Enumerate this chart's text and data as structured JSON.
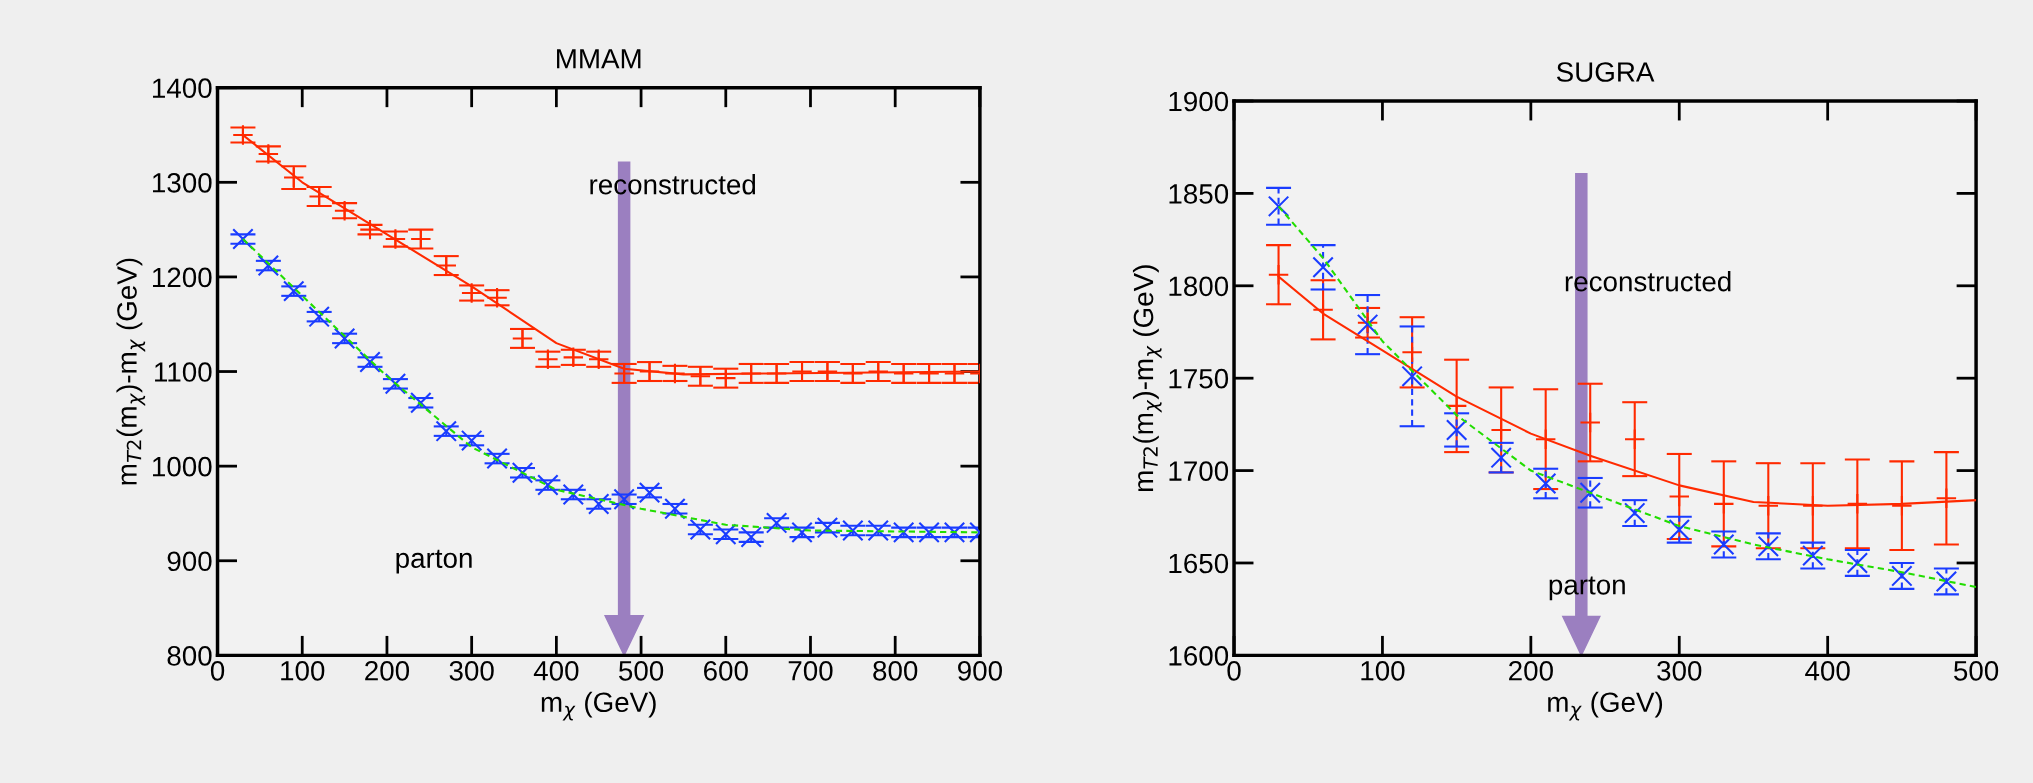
{
  "chart_data": [
    {
      "type": "scatter",
      "title": "MMAM",
      "xlabel": "m$_{χ}$ (GeV)",
      "ylabel": "m$_{T2}$(m$_{χ}$)-m$_{χ}$ (GeV)",
      "xlim": [
        0,
        900
      ],
      "xticks": [
        0,
        100,
        200,
        300,
        400,
        500,
        600,
        700,
        800,
        900
      ],
      "ylim": [
        800,
        1400
      ],
      "yticks": [
        800,
        900,
        1000,
        1100,
        1200,
        1300,
        1400
      ],
      "grid": false,
      "legend": false,
      "x": [
        30,
        60,
        90,
        120,
        150,
        180,
        210,
        240,
        270,
        300,
        330,
        360,
        390,
        420,
        450,
        480,
        510,
        540,
        570,
        600,
        630,
        660,
        690,
        720,
        750,
        780,
        810,
        840,
        870,
        900
      ],
      "series": [
        {
          "color": "#ff2a00",
          "marker": "cross",
          "values": [
            1350,
            1330,
            1305,
            1285,
            1270,
            1250,
            1240,
            1240,
            1212,
            1183,
            1178,
            1135,
            1113,
            1115,
            1113,
            1098,
            1100,
            1098,
            1095,
            1093,
            1098,
            1098,
            1100,
            1100,
            1098,
            1100,
            1098,
            1098,
            1098,
            1098
          ],
          "errors": [
            8,
            8,
            12,
            10,
            8,
            5,
            8,
            10,
            10,
            8,
            8,
            10,
            8,
            8,
            8,
            10,
            10,
            8,
            10,
            10,
            10,
            10,
            10,
            10,
            10,
            10,
            10,
            10,
            10,
            10
          ]
        },
        {
          "color": "#1a3cff",
          "marker": "cross",
          "line_style": "dashed",
          "values": [
            1240,
            1212,
            1185,
            1158,
            1135,
            1110,
            1087,
            1067,
            1037,
            1027,
            1008,
            993,
            980,
            970,
            960,
            965,
            972,
            955,
            933,
            928,
            925,
            940,
            930,
            935,
            932,
            932,
            930,
            930,
            930,
            930
          ],
          "errors": [
            5,
            5,
            5,
            5,
            5,
            5,
            5,
            5,
            5,
            5,
            5,
            5,
            5,
            5,
            5,
            5,
            5,
            5,
            5,
            5,
            5,
            5,
            5,
            5,
            5,
            5,
            5,
            5,
            5,
            5
          ]
        },
        {
          "type": "line",
          "color": "#ff2a00",
          "line_style": "solid",
          "x": [
            30,
            100,
            200,
            300,
            400,
            480,
            550,
            650,
            900
          ],
          "values": [
            1350,
            1300,
            1245,
            1190,
            1130,
            1103,
            1097,
            1098,
            1100
          ]
        },
        {
          "type": "line",
          "color": "#22dd00",
          "line_style": "dashed",
          "x": [
            30,
            100,
            200,
            300,
            400,
            500,
            600,
            700,
            900
          ],
          "values": [
            1240,
            1180,
            1095,
            1020,
            975,
            955,
            938,
            932,
            930
          ]
        }
      ],
      "ref_lines": [
        {
          "axis": "x",
          "value": 480,
          "color": "#9b7fc0"
        }
      ],
      "annotations": [
        "reconstructed",
        "parton"
      ]
    },
    {
      "type": "scatter",
      "title": "SUGRA",
      "xlabel": "m$_{χ}$ (GeV)",
      "ylabel": "m$_{T2}$(m$_{χ}$)-m$_{χ}$ (GeV)",
      "xlim": [
        0,
        500
      ],
      "xticks": [
        0,
        100,
        200,
        300,
        400,
        500
      ],
      "ylim": [
        1600,
        1900
      ],
      "yticks": [
        1600,
        1650,
        1700,
        1750,
        1800,
        1850,
        1900
      ],
      "grid": false,
      "legend": false,
      "x": [
        30,
        60,
        90,
        120,
        150,
        180,
        210,
        240,
        270,
        300,
        330,
        360,
        390,
        420,
        450,
        480
      ],
      "series": [
        {
          "color": "#ff2a00",
          "marker": "cross",
          "values": [
            1806,
            1787,
            1780,
            1764,
            1735,
            1722,
            1717,
            1726,
            1717,
            1686,
            1682,
            1681,
            1681,
            1682,
            1681,
            1685
          ],
          "errors": [
            16,
            16,
            8,
            19,
            25,
            23,
            27,
            21,
            20,
            23,
            23,
            23,
            23,
            24,
            24,
            25
          ]
        },
        {
          "color": "#1a3cff",
          "marker": "cross",
          "line_style": "dashed",
          "values": [
            1843,
            1810,
            1779,
            1751,
            1722,
            1707,
            1693,
            1688,
            1677,
            1668,
            1660,
            1659,
            1654,
            1650,
            1643,
            1640
          ],
          "errors": [
            10,
            12,
            16,
            27,
            9,
            8,
            8,
            8,
            7,
            7,
            7,
            7,
            7,
            7,
            7,
            7
          ]
        },
        {
          "type": "line",
          "color": "#ff2a00",
          "line_style": "solid",
          "x": [
            30,
            60,
            100,
            150,
            200,
            240,
            300,
            350,
            400,
            450,
            500
          ],
          "values": [
            1805,
            1785,
            1765,
            1740,
            1720,
            1708,
            1692,
            1683,
            1681,
            1682,
            1684
          ]
        },
        {
          "type": "line",
          "color": "#22dd00",
          "line_style": "dashed",
          "x": [
            30,
            60,
            100,
            150,
            200,
            240,
            300,
            350,
            400,
            450,
            500
          ],
          "values": [
            1843,
            1815,
            1770,
            1730,
            1700,
            1688,
            1670,
            1660,
            1652,
            1645,
            1637
          ]
        }
      ],
      "ref_lines": [
        {
          "axis": "x",
          "value": 234,
          "color": "#9b7fc0"
        }
      ],
      "annotations": [
        "reconstructed",
        "parton"
      ]
    }
  ]
}
